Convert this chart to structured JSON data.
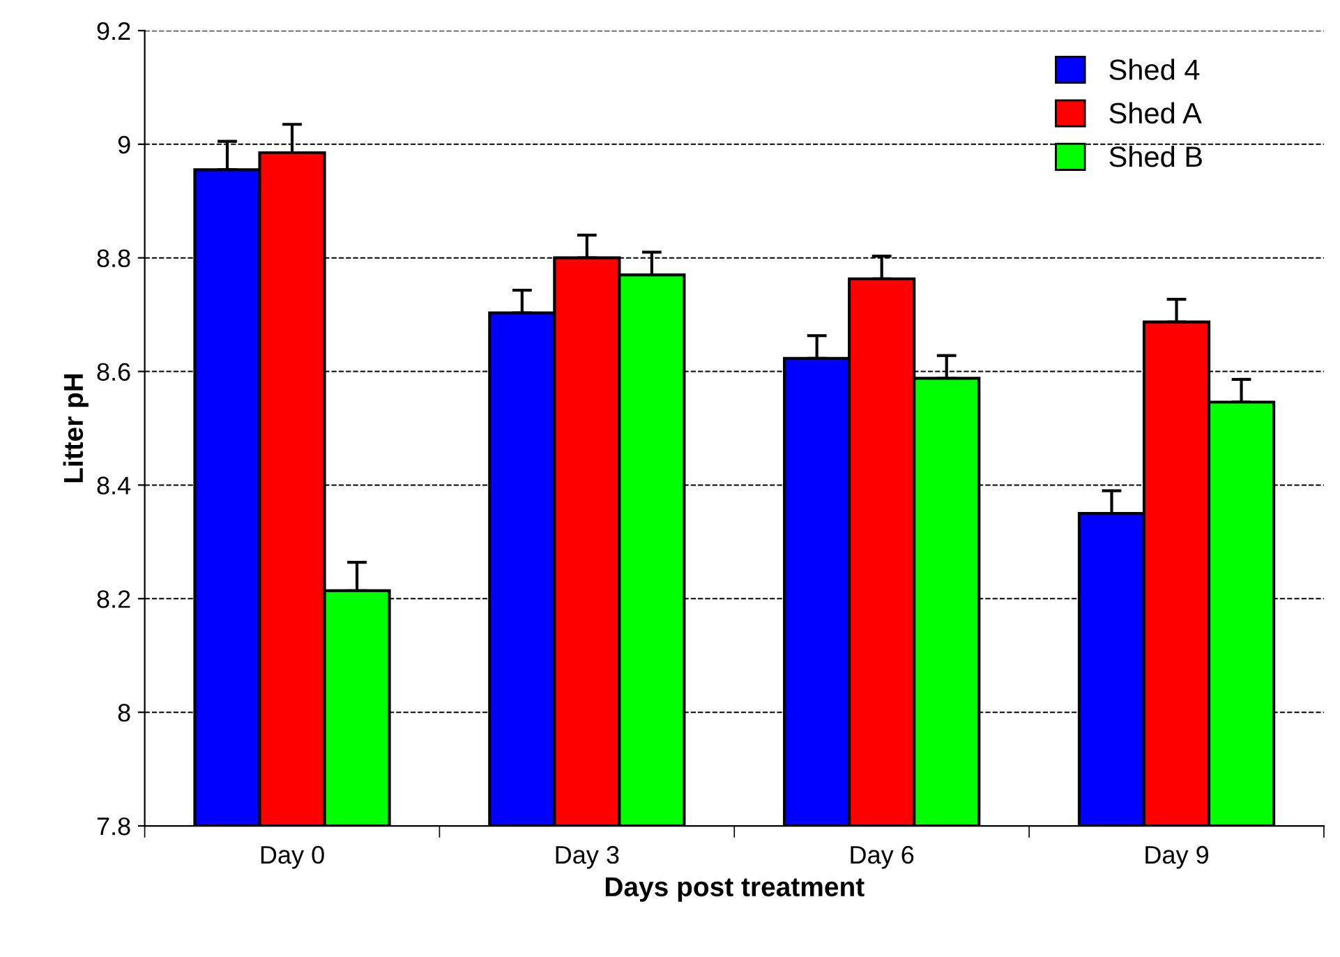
{
  "chart_data": {
    "type": "bar",
    "xlabel": "Days post treatment",
    "ylabel": "Litter pH",
    "categories": [
      "Day 0",
      "Day 3",
      "Day 6",
      "Day 9"
    ],
    "series": [
      {
        "name": "Shed 4",
        "color": "#0000ff",
        "values": [
          8.955,
          8.703,
          8.623,
          8.35
        ],
        "errors": [
          0.05,
          0.04,
          0.04,
          0.04
        ]
      },
      {
        "name": "Shed A",
        "color": "#ff0000",
        "values": [
          8.985,
          8.8,
          8.763,
          8.687
        ],
        "errors": [
          0.05,
          0.04,
          0.04,
          0.04
        ]
      },
      {
        "name": "Shed B",
        "color": "#00ff00",
        "values": [
          8.214,
          8.77,
          8.588,
          8.546
        ],
        "errors": [
          0.05,
          0.04,
          0.04,
          0.04
        ]
      }
    ],
    "ylim": [
      7.8,
      9.2
    ],
    "yticks": [
      7.8,
      8,
      8.2,
      8.4,
      8.6,
      8.8,
      9,
      9.2
    ],
    "grid": "y",
    "legend": "top right"
  }
}
